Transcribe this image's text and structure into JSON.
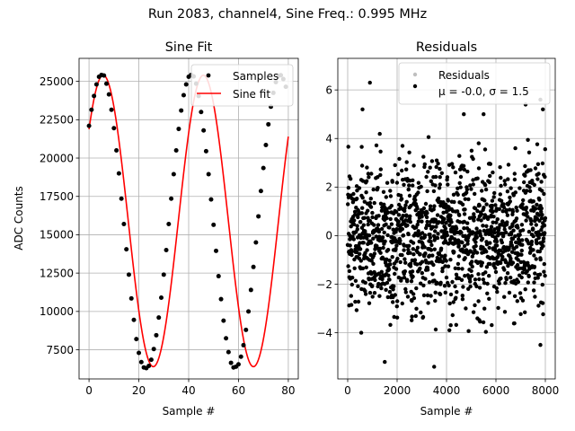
{
  "figure": {
    "suptitle": "Run 2083, channel4, Sine Freq.: 0.995 MHz"
  },
  "chart_data": [
    {
      "type": "line",
      "title": "Sine Fit",
      "xlabel": "Sample #",
      "ylabel": "ADC Counts",
      "xlim": [
        -4,
        84
      ],
      "ylim": [
        5600,
        26500
      ],
      "xticks": [
        0,
        20,
        40,
        60,
        80
      ],
      "yticks": [
        7500,
        10000,
        12500,
        15000,
        17500,
        20000,
        22500,
        25000
      ],
      "grid": true,
      "legend_position": "top-right",
      "fit": {
        "amplitude": 9500,
        "offset": 15900,
        "period": 40.2,
        "phase_peak_sample": 5.7
      },
      "series": [
        {
          "name": "Samples",
          "style": "black-dots",
          "color": "#000000",
          "x": [
            0,
            1,
            2,
            3,
            4,
            5,
            6,
            7,
            8,
            9,
            10,
            11,
            12,
            13,
            14,
            15,
            16,
            17,
            18,
            19,
            20,
            21,
            22,
            23,
            24,
            25,
            26,
            27,
            28,
            29,
            30,
            31,
            32,
            33,
            34,
            35,
            36,
            37,
            38,
            39,
            40,
            41,
            42,
            43,
            44,
            45,
            46,
            47,
            48,
            49,
            50,
            51,
            52,
            53,
            54,
            55,
            56,
            57,
            58,
            59,
            60,
            61,
            62,
            63,
            64,
            65,
            66,
            67,
            68,
            69,
            70,
            71,
            72,
            73,
            74,
            75,
            76,
            77,
            78,
            79
          ],
          "y": [
            22100,
            23150,
            24050,
            24800,
            25300,
            25420,
            25380,
            24850,
            24150,
            23150,
            21950,
            20500,
            19000,
            17350,
            15700,
            14050,
            12400,
            10850,
            9450,
            8200,
            7300,
            6700,
            6350,
            6300,
            6450,
            6850,
            7550,
            8450,
            9600,
            10900,
            12400,
            14000,
            15700,
            17350,
            18950,
            20500,
            21900,
            23100,
            24100,
            24800,
            25300,
            25420,
            25320,
            24850,
            24050,
            23000,
            21800,
            20450,
            18950,
            17300,
            15650,
            13950,
            12300,
            10800,
            9400,
            8250,
            7350,
            6650,
            6350,
            6400,
            6550,
            7050,
            7800,
            8800,
            10000,
            11400,
            12900,
            14500,
            16200,
            17850,
            19350,
            20850,
            22200,
            23350,
            24250,
            24950,
            25350,
            25400,
            25150,
            24650
          ]
        },
        {
          "name": "Sine fit",
          "style": "red-line",
          "color": "#ff0000"
        }
      ]
    },
    {
      "type": "scatter",
      "title": "Residuals",
      "xlabel": "Sample #",
      "xlim": [
        -400,
        8400
      ],
      "ylim": [
        -5.9,
        7.3
      ],
      "xticks": [
        0,
        2000,
        4000,
        6000,
        8000
      ],
      "yticks": [
        -4,
        -2,
        0,
        2,
        4,
        6
      ],
      "grid": true,
      "legend_position": "top-right",
      "stats": {
        "mu": -0.0,
        "sigma": 1.5,
        "n_samples": 8000
      },
      "series": [
        {
          "name": "Residuals",
          "style": "black-dots",
          "color": "#000000"
        }
      ],
      "legend": {
        "entries": [
          {
            "label": "Residuals",
            "marker_color": "#bfbfbf"
          },
          {
            "label": "μ = -0.0, σ = 1.5",
            "marker_color": "#000000"
          }
        ]
      },
      "notable_points": [
        [
          600,
          5.2
        ],
        [
          900,
          6.3
        ],
        [
          1500,
          -5.2
        ],
        [
          3500,
          -5.4
        ],
        [
          4700,
          5.0
        ],
        [
          5500,
          5.0
        ],
        [
          7200,
          5.4
        ],
        [
          7800,
          5.6
        ],
        [
          7900,
          5.2
        ],
        [
          7800,
          -4.5
        ]
      ]
    }
  ]
}
